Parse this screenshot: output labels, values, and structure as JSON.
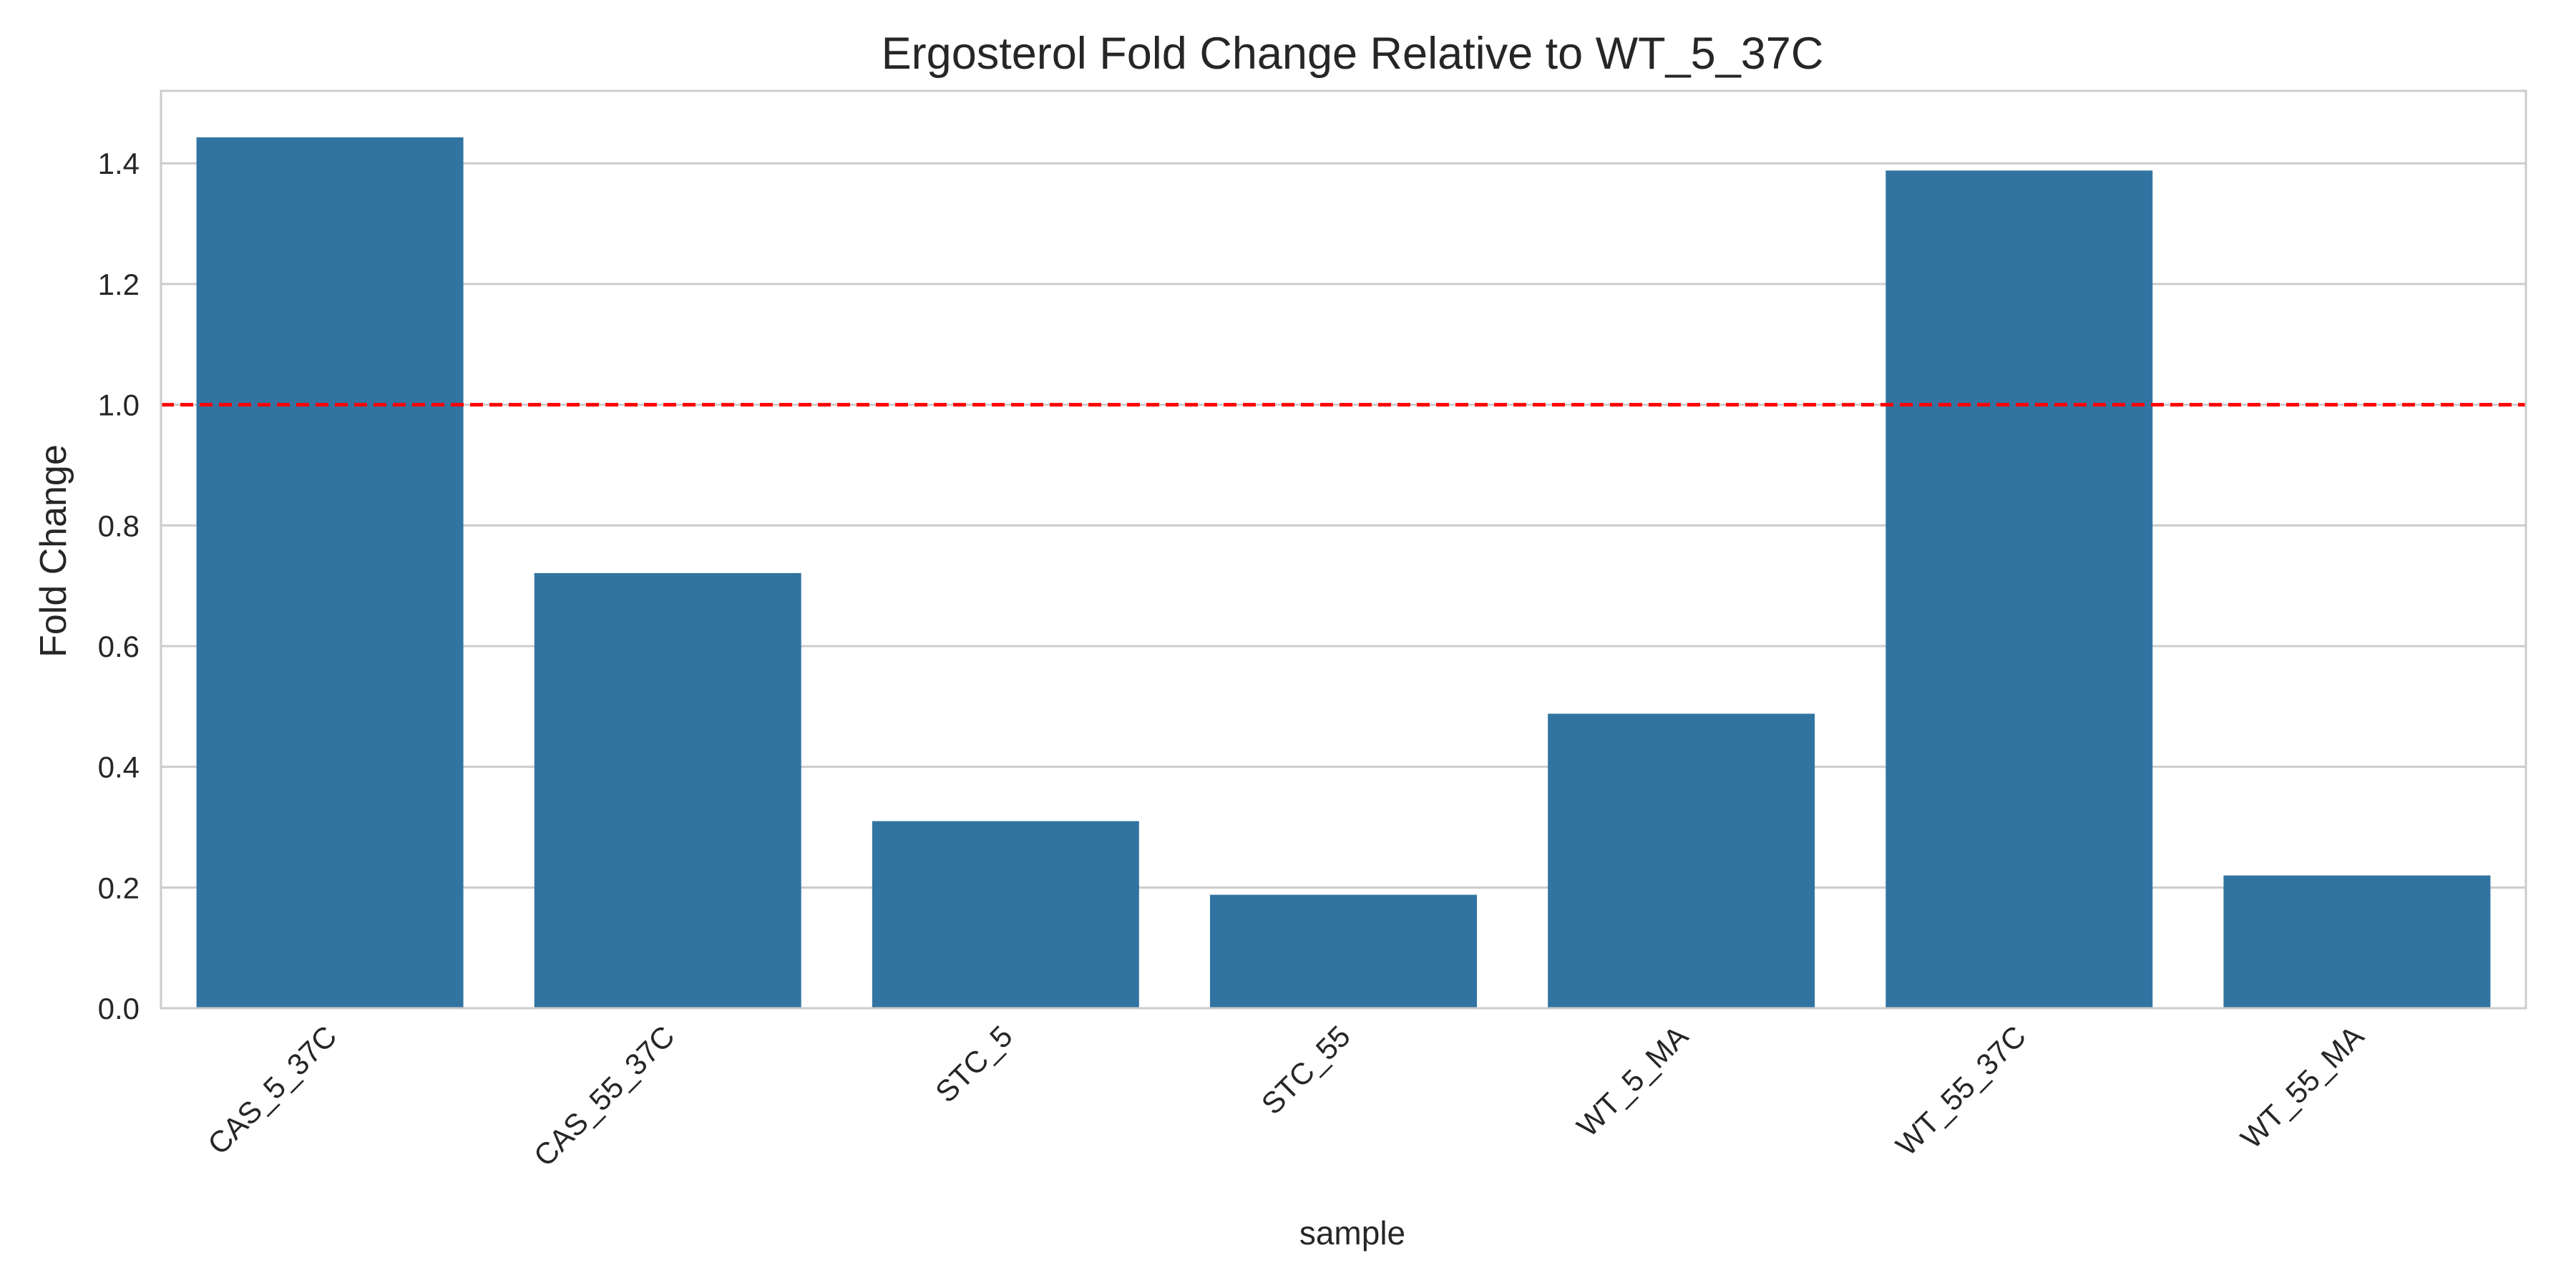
{
  "chart_data": {
    "type": "bar",
    "title": "Ergosterol Fold Change Relative to WT_5_37C",
    "xlabel": "sample",
    "ylabel": "Fold Change",
    "categories": [
      "CAS_5_37C",
      "CAS_55_37C",
      "STC_5",
      "STC_55",
      "WT_5_MA",
      "WT_55_37C",
      "WT_55_MA"
    ],
    "values": [
      1.443,
      0.721,
      0.31,
      0.188,
      0.488,
      1.388,
      0.22
    ],
    "ylim": [
      0,
      1.52
    ],
    "yticks": [
      "0.0",
      "0.2",
      "0.4",
      "0.6",
      "0.8",
      "1.0",
      "1.2",
      "1.4"
    ],
    "reference_line": {
      "y": 1.0,
      "style": "dashed",
      "color": "#ff0000"
    },
    "bar_color": "#3274a1",
    "grid": "horizontal",
    "legend": "none"
  }
}
